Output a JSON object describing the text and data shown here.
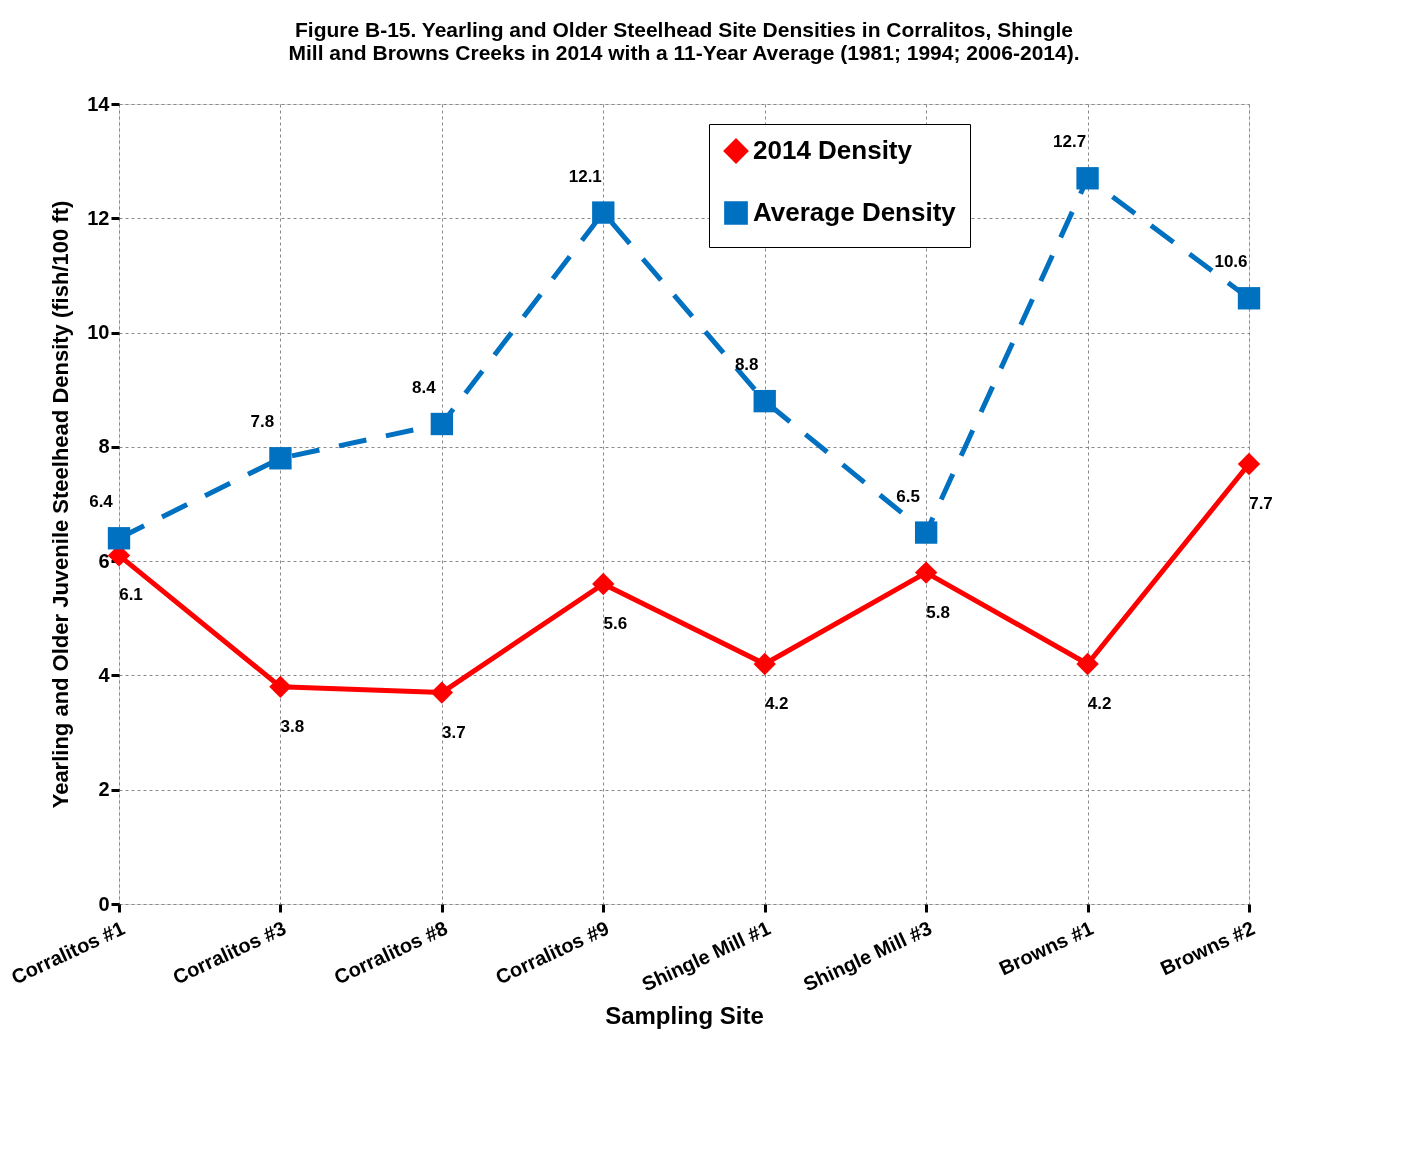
{
  "chart_data": {
    "type": "line",
    "title": "Figure B-15. Yearling and Older Steelhead Site Densities in Corralitos, Shingle Mill and Browns Creeks in 2014 with a 11-Year Average (1981; 1994; 2006-2014).",
    "xlabel": "Sampling Site",
    "ylabel": "Yearling and Older Juvenile Steelhead Density (fish/100 ft)",
    "categories": [
      "Corralitos #1",
      "Corralitos #3",
      "Corralitos #8",
      "Corralitos #9",
      "Shingle Mill #1",
      "Shingle Mill #3",
      "Browns #1",
      "Browns #2"
    ],
    "series": [
      {
        "name": "2014 Density",
        "color": "#ff0000",
        "marker": "diamond",
        "line_style": "solid",
        "values": [
          6.1,
          3.8,
          3.7,
          5.6,
          4.2,
          5.8,
          4.2,
          7.7
        ]
      },
      {
        "name": "Average Density",
        "color": "#0070c0",
        "marker": "square",
        "line_style": "dashed",
        "values": [
          6.4,
          7.8,
          8.4,
          12.1,
          8.8,
          6.5,
          12.7,
          10.6
        ]
      }
    ],
    "ylim": [
      0,
      14
    ],
    "yticks": [
      0,
      2,
      4,
      6,
      8,
      10,
      12,
      14
    ],
    "grid": true,
    "legend": "top right",
    "data_labels": true
  }
}
